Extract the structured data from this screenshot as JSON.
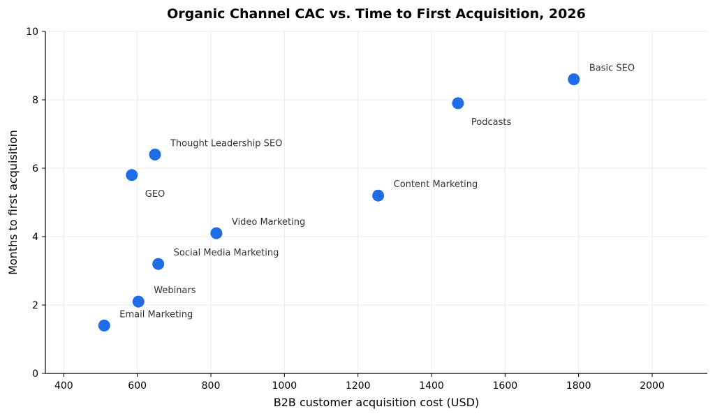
{
  "chart_data": {
    "type": "scatter",
    "title": "Organic Channel CAC vs. Time to First Acquisition, 2026",
    "xlabel": "B2B customer acquisition cost (USD)",
    "ylabel": "Months to first acquisition",
    "xlim": [
      350,
      2150
    ],
    "ylim": [
      0,
      10
    ],
    "xticks": [
      400,
      600,
      800,
      1000,
      1200,
      1400,
      1600,
      1800,
      2000
    ],
    "yticks": [
      0,
      2,
      4,
      6,
      8,
      10
    ],
    "grid": true,
    "color": "#1f6de6",
    "points": [
      {
        "label": "Email Marketing",
        "x": 510,
        "y": 1.4,
        "label_pos": "upper-right"
      },
      {
        "label": "Webinars",
        "x": 603,
        "y": 2.1,
        "label_pos": "upper-right"
      },
      {
        "label": "Social Media Marketing",
        "x": 657,
        "y": 3.2,
        "label_pos": "upper-right"
      },
      {
        "label": "Video Marketing",
        "x": 815,
        "y": 4.1,
        "label_pos": "upper-right"
      },
      {
        "label": "GEO",
        "x": 585,
        "y": 5.8,
        "label_pos": "lower-right"
      },
      {
        "label": "Thought Leadership SEO",
        "x": 648,
        "y": 6.4,
        "label_pos": "upper-right"
      },
      {
        "label": "Content Marketing",
        "x": 1255,
        "y": 5.2,
        "label_pos": "upper-right"
      },
      {
        "label": "Podcasts",
        "x": 1472,
        "y": 7.9,
        "label_pos": "lower-right"
      },
      {
        "label": "Basic SEO",
        "x": 1787,
        "y": 8.6,
        "label_pos": "upper-right"
      }
    ]
  }
}
